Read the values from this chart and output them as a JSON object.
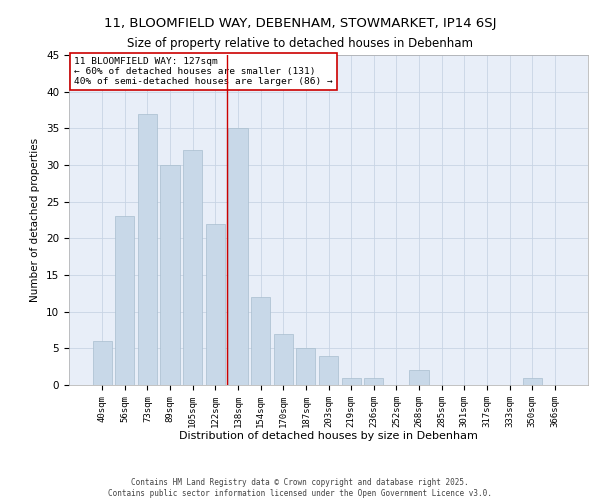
{
  "title_line1": "11, BLOOMFIELD WAY, DEBENHAM, STOWMARKET, IP14 6SJ",
  "title_line2": "Size of property relative to detached houses in Debenham",
  "xlabel": "Distribution of detached houses by size in Debenham",
  "ylabel": "Number of detached properties",
  "categories": [
    "40sqm",
    "56sqm",
    "73sqm",
    "89sqm",
    "105sqm",
    "122sqm",
    "138sqm",
    "154sqm",
    "170sqm",
    "187sqm",
    "203sqm",
    "219sqm",
    "236sqm",
    "252sqm",
    "268sqm",
    "285sqm",
    "301sqm",
    "317sqm",
    "333sqm",
    "350sqm",
    "366sqm"
  ],
  "values": [
    6,
    23,
    37,
    30,
    32,
    22,
    35,
    12,
    7,
    5,
    4,
    1,
    1,
    0,
    2,
    0,
    0,
    0,
    0,
    1,
    0
  ],
  "bar_color": "#c8d8e8",
  "bar_edgecolor": "#a8bece",
  "grid_color": "#c8d4e4",
  "background_color": "#e8eef8",
  "vline_x": 5.5,
  "vline_color": "#cc0000",
  "annotation_text": "11 BLOOMFIELD WAY: 127sqm\n← 60% of detached houses are smaller (131)\n40% of semi-detached houses are larger (86) →",
  "annotation_box_color": "#ffffff",
  "annotation_box_edgecolor": "#cc0000",
  "ylim": [
    0,
    45
  ],
  "yticks": [
    0,
    5,
    10,
    15,
    20,
    25,
    30,
    35,
    40,
    45
  ],
  "footer_line1": "Contains HM Land Registry data © Crown copyright and database right 2025.",
  "footer_line2": "Contains public sector information licensed under the Open Government Licence v3.0."
}
